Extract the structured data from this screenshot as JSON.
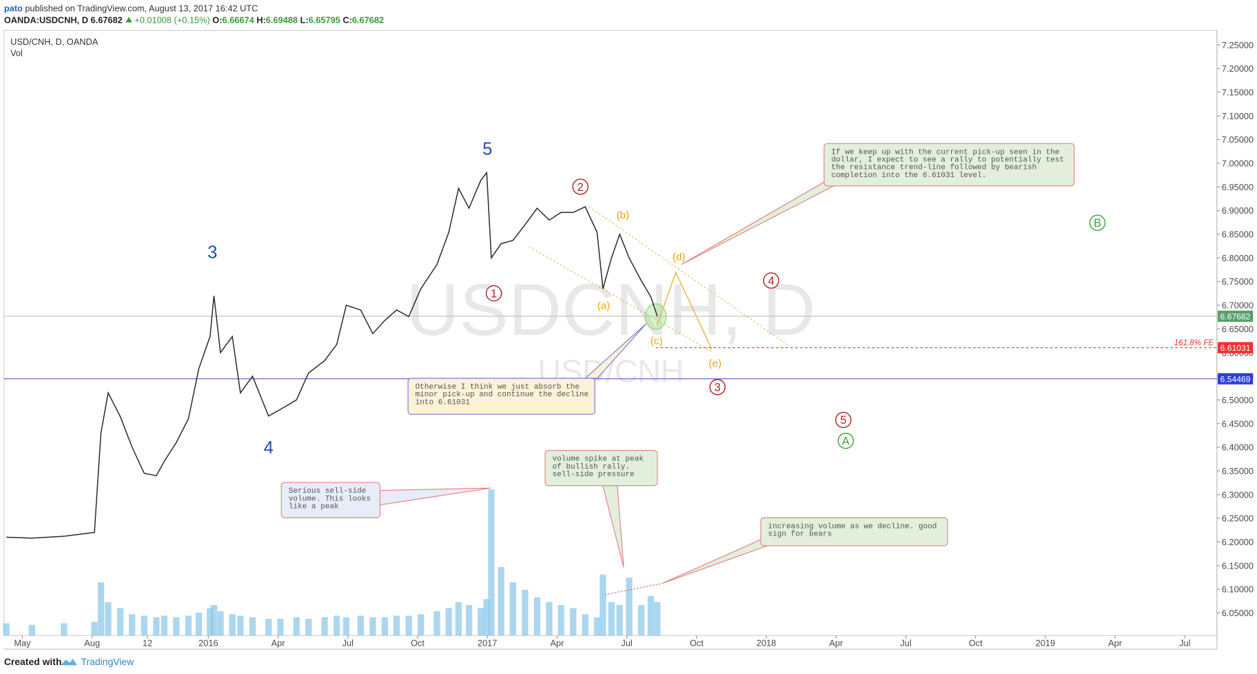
{
  "header": {
    "publisher": "pato",
    "published": "published on TradingView.com, August 13, 2017 16:42 UTC",
    "symbol": "OANDA:USDCNH, D",
    "last": 6.67682,
    "change": "+0.01008 (+0.15%)",
    "open_label": "O:",
    "open": 6.66674,
    "high_label": "H:",
    "high": 6.69488,
    "low_label": "L:",
    "low": 6.65795,
    "close_label": "C:",
    "close": 6.67682
  },
  "chart_data": {
    "type": "line",
    "title": "USD/CNH, D, OANDA",
    "volume_label": "Vol",
    "watermark": "USDCNH, D",
    "watermark_sub": "USD/CNH",
    "color": "#2b2b2b",
    "x": [
      -0.69,
      0.41,
      1.79,
      3.1,
      3.38,
      3.69,
      4.21,
      4.72,
      5.24,
      5.76,
      6.1,
      6.62,
      7.14,
      7.59,
      8.07,
      8.24,
      8.52,
      9.03,
      9.38,
      9.9,
      10.59,
      11.1,
      11.79,
      12.31,
      13.0,
      13.52,
      13.93,
      14.55,
      15.07,
      15.59,
      16.1,
      16.62,
      17.14,
      17.83,
      18.34,
      18.76,
      19.21,
      19.72,
      19.97,
      20.17,
      20.59,
      21.1,
      21.62,
      22.14,
      22.66,
      23.17,
      23.69,
      24.21,
      24.72,
      24.97,
      25.34,
      25.69,
      26.1,
      26.62,
      27.03,
      27.31
    ],
    "values": [
      6.21,
      6.208,
      6.212,
      6.22,
      6.43,
      6.515,
      6.465,
      6.4,
      6.345,
      6.34,
      6.37,
      6.41,
      6.46,
      6.566,
      6.634,
      6.72,
      6.6,
      6.634,
      6.515,
      6.55,
      6.466,
      6.48,
      6.5,
      6.557,
      6.583,
      6.617,
      6.7,
      6.69,
      6.64,
      6.668,
      6.69,
      6.676,
      6.735,
      6.786,
      6.854,
      6.947,
      6.905,
      6.964,
      6.98,
      6.8,
      6.83,
      6.837,
      6.87,
      6.905,
      6.88,
      6.896,
      6.896,
      6.908,
      6.854,
      6.735,
      6.8,
      6.85,
      6.8,
      6.752,
      6.718,
      6.677
    ],
    "volume": {
      "color": "#8ec9ea",
      "vlim": [
        0,
        100
      ],
      "values": [
        8,
        7,
        8,
        9,
        35,
        22,
        18,
        14,
        13,
        12,
        13,
        12,
        13,
        15,
        18,
        20,
        16,
        14,
        13,
        12,
        11,
        11,
        12,
        11,
        12,
        13,
        12,
        13,
        12,
        12,
        13,
        13,
        14,
        16,
        18,
        22,
        20,
        18,
        24,
        96,
        45,
        35,
        30,
        25,
        22,
        20,
        18,
        14,
        12,
        40,
        22,
        20,
        38,
        20,
        26,
        22
      ]
    },
    "ylim": [
      6.0023,
      7.2805
    ],
    "yticks": [
      {
        "value": 6.05,
        "label": "6.05000"
      },
      {
        "value": 6.1,
        "label": "6.10000"
      },
      {
        "value": 6.15,
        "label": "6.15000"
      },
      {
        "value": 6.2,
        "label": "6.20000"
      },
      {
        "value": 6.25,
        "label": "6.25000"
      },
      {
        "value": 6.3,
        "label": "6.30000"
      },
      {
        "value": 6.35,
        "label": "6.35000"
      },
      {
        "value": 6.4,
        "label": "6.40000"
      },
      {
        "value": 6.45,
        "label": "6.45000"
      },
      {
        "value": 6.5,
        "label": "6.50000"
      },
      {
        "value": 6.55,
        "label": "6.55000"
      },
      {
        "value": 6.6,
        "label": "6.60000"
      },
      {
        "value": 6.65,
        "label": "6.65000"
      },
      {
        "value": 6.7,
        "label": "6.70000"
      },
      {
        "value": 6.75,
        "label": "6.75000"
      },
      {
        "value": 6.8,
        "label": "6.80000"
      },
      {
        "value": 6.85,
        "label": "6.85000"
      },
      {
        "value": 6.9,
        "label": "6.90000"
      },
      {
        "value": 6.95,
        "label": "6.95000"
      },
      {
        "value": 7.0,
        "label": "7.00000"
      },
      {
        "value": 7.05,
        "label": "7.05000"
      },
      {
        "value": 7.1,
        "label": "7.10000"
      },
      {
        "value": 7.15,
        "label": "7.15000"
      },
      {
        "value": 7.2,
        "label": "7.20000"
      },
      {
        "value": 7.25,
        "label": "7.25000"
      }
    ],
    "xlim": [
      -0.79,
      51.38
    ],
    "xticks": [
      {
        "value": 0,
        "label": "May"
      },
      {
        "value": 3,
        "label": "Aug"
      },
      {
        "value": 5.38,
        "label": "12"
      },
      {
        "value": 8,
        "label": "2016"
      },
      {
        "value": 11,
        "label": "Apr"
      },
      {
        "value": 14,
        "label": "Jul"
      },
      {
        "value": 17,
        "label": "Oct"
      },
      {
        "value": 20,
        "label": "2017"
      },
      {
        "value": 23,
        "label": "Apr"
      },
      {
        "value": 26,
        "label": "Jul"
      },
      {
        "value": 29,
        "label": "Oct"
      },
      {
        "value": 32,
        "label": "2018"
      },
      {
        "value": 35,
        "label": "Apr"
      },
      {
        "value": 38,
        "label": "Jul"
      },
      {
        "value": 41,
        "label": "Oct"
      },
      {
        "value": 44,
        "label": "2019"
      },
      {
        "value": 47,
        "label": "Apr"
      },
      {
        "value": 50,
        "label": "Jul"
      }
    ],
    "price_lines": [
      {
        "value": 6.67682,
        "color": "#5b9f6a"
      },
      {
        "value": 6.61031,
        "color": "#f23030"
      },
      {
        "value": 6.54469,
        "color": "#2b3ed6"
      }
    ],
    "fe_label": "161.8% FE",
    "wave_labels": [
      {
        "text": "5",
        "color": "#1f4fbf",
        "circled": false
      },
      {
        "text": "3",
        "color": "#1f4fbf",
        "circled": false
      },
      {
        "text": "4",
        "color": "#1f4fbf",
        "circled": false
      },
      {
        "text": "1",
        "color": "#b71c1c",
        "circled": true
      },
      {
        "text": "2",
        "color": "#b71c1c",
        "circled": true
      },
      {
        "text": "3",
        "color": "#b71c1c",
        "circled": true
      },
      {
        "text": "4",
        "color": "#b71c1c",
        "circled": true
      },
      {
        "text": "5",
        "color": "#b71c1c",
        "circled": true
      },
      {
        "text": "A",
        "color": "#33a833",
        "circled": true
      },
      {
        "text": "B",
        "color": "#33a833",
        "circled": true
      },
      {
        "text": "(a)",
        "color": "#f0a30a",
        "circled": false
      },
      {
        "text": "(b)",
        "color": "#f0a30a",
        "circled": false
      },
      {
        "text": "(c)",
        "color": "#f0a30a",
        "circled": false
      },
      {
        "text": "(d)",
        "color": "#f0a30a",
        "circled": false
      },
      {
        "text": "(e)",
        "color": "#f0a30a",
        "circled": false
      }
    ],
    "annotations": [
      {
        "lines": [
          "If we keep up with the current pick-up seen in the",
          "dollar, I expect to see a rally to potentially test",
          "the resistance trend-line followed by bearish",
          "completion into the 6.61031 level."
        ]
      },
      {
        "lines": [
          "Otherwise I think we just absorb the",
          "minor pick-up and continue the decline",
          "into 6.61031"
        ]
      },
      {
        "lines": [
          "Serious sell-side",
          "volume. This looks",
          "like a peak"
        ]
      },
      {
        "lines": [
          "volume spike at peak",
          "of bullish rally.",
          "sell-side pressure"
        ]
      },
      {
        "lines": [
          "increasing volume as we decline. good",
          "sign for bears"
        ]
      }
    ]
  },
  "footer": {
    "created": "Created with",
    "brand": "TradingView"
  }
}
